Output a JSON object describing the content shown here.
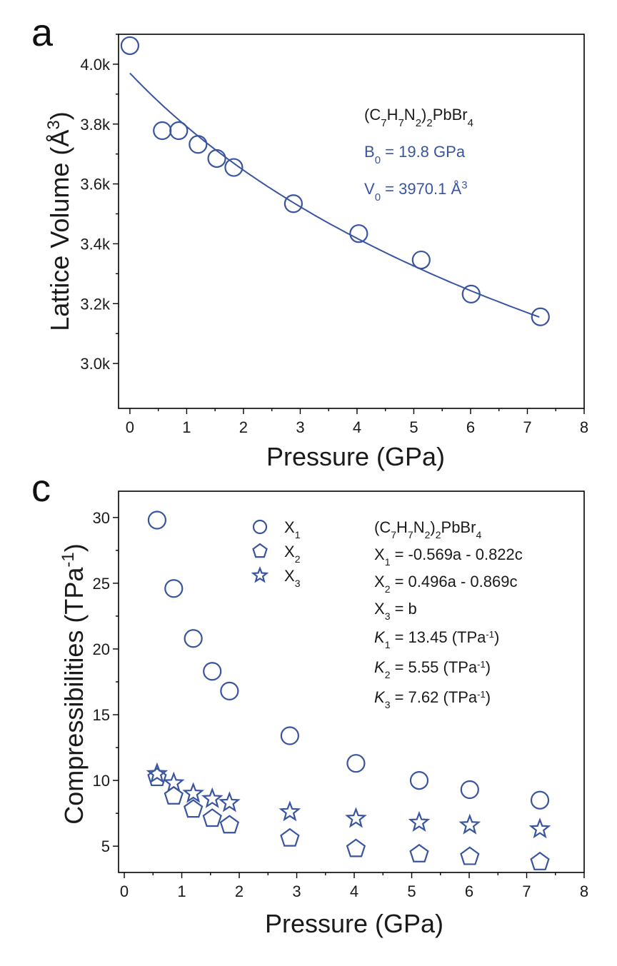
{
  "chart_data": [
    {
      "panel_label": "a",
      "type": "scatter",
      "xlabel": "Pressure (GPa)",
      "ylabel": "Lattice Volume (Å³)",
      "xlim": [
        -0.2,
        8
      ],
      "ylim": [
        2850,
        4100
      ],
      "xticks": [
        "0",
        "1",
        "2",
        "3",
        "4",
        "5",
        "6",
        "7",
        "8"
      ],
      "yticks": [
        "3.0k",
        "3.2k",
        "3.4k",
        "3.6k",
        "3.8k",
        "4.0k"
      ],
      "series": [
        {
          "marker": "circle",
          "x": [
            0,
            0.57,
            0.86,
            1.2,
            1.53,
            1.83,
            2.88,
            4.03,
            5.13,
            6.01,
            7.23
          ],
          "y": [
            4062,
            3778,
            3778,
            3732,
            3685,
            3655,
            3534,
            3434,
            3346,
            3232,
            3156
          ]
        }
      ],
      "fit": {
        "B0": 19.8,
        "V0": 3970.1,
        "x_range": [
          0,
          7.23
        ]
      },
      "annotations": {
        "formula": "(C7H7N2)2PbBr4",
        "b0_text": "B0 = 19.8 GPa",
        "v0_text": "V0 = 3970.1 Å3"
      },
      "color": "#3a55a0"
    },
    {
      "panel_label": "c",
      "type": "scatter",
      "xlabel": "Pressure (GPa)",
      "ylabel": "Compressibilities (TPa-1)",
      "xlim": [
        -0.1,
        8
      ],
      "ylim": [
        3,
        32
      ],
      "xticks": [
        "0",
        "1",
        "2",
        "3",
        "4",
        "5",
        "6",
        "7",
        "8"
      ],
      "yticks": [
        "5",
        "10",
        "15",
        "20",
        "25",
        "30"
      ],
      "x": [
        0.57,
        0.86,
        1.2,
        1.53,
        1.83,
        2.88,
        4.03,
        5.13,
        6.01,
        7.23
      ],
      "series": [
        {
          "name": "X1",
          "marker": "circle",
          "values": [
            29.8,
            24.6,
            20.8,
            18.3,
            16.8,
            13.4,
            11.3,
            10.0,
            9.3,
            8.5
          ]
        },
        {
          "name": "X2",
          "marker": "pentagon",
          "values": [
            10.2,
            8.8,
            7.8,
            7.1,
            6.6,
            5.6,
            4.8,
            4.4,
            4.2,
            3.8
          ]
        },
        {
          "name": "X3",
          "marker": "star",
          "values": [
            10.5,
            9.8,
            9.0,
            8.6,
            8.3,
            7.6,
            7.1,
            6.8,
            6.6,
            6.3
          ]
        }
      ],
      "legend_position": "top-center",
      "annotations": {
        "formula": "(C7H7N2)2PbBr4",
        "x1_def": "X1 = -0.569a - 0.822c",
        "x2_def": "X2 = 0.496a - 0.869c",
        "x3_def": "X3 = b",
        "k1_text": "K1 = 13.45 (TPa-1)",
        "k2_text": "K2 = 5.55 (TPa-1)",
        "k3_text": "K3 = 7.62 (TPa-1)"
      },
      "color": "#3a55a0"
    }
  ]
}
